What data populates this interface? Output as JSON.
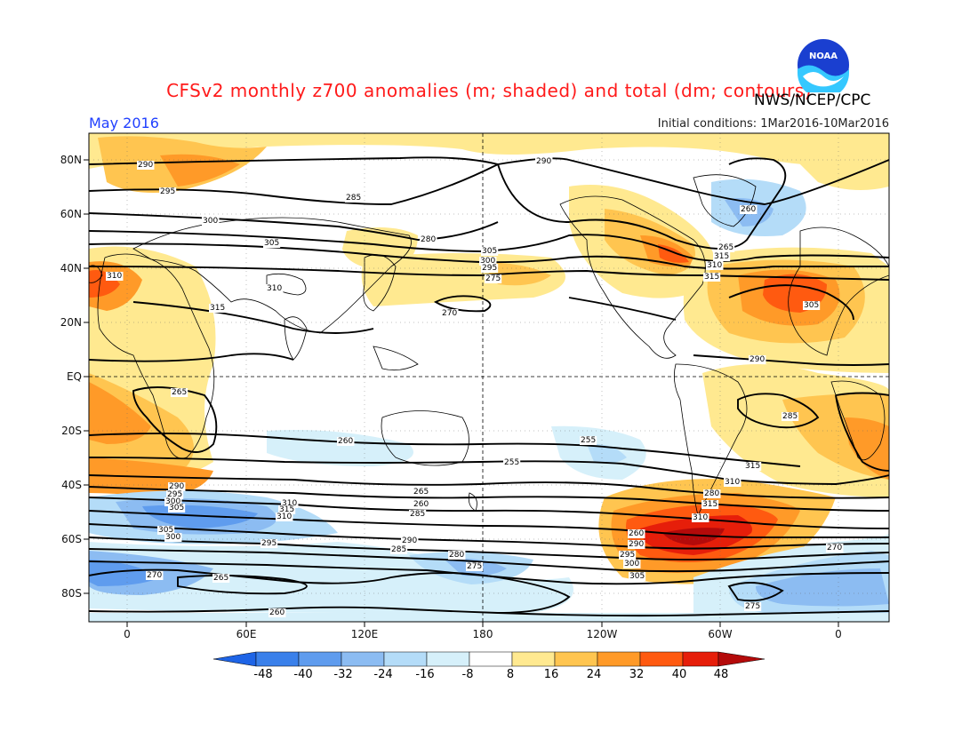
{
  "header": {
    "title": "CFSv2 monthly z700 anomalies (m; shaded) and total (dm; contours)",
    "agency": "NWS/NCEP/CPC",
    "month": "May 2016",
    "initial_conditions": "Initial conditions: 1Mar2016-10Mar2016",
    "logo_text": "NOAA"
  },
  "map": {
    "lat_labels": [
      "80N",
      "60N",
      "40N",
      "20N",
      "EQ",
      "20S",
      "40S",
      "60S",
      "80S"
    ],
    "lon_labels": [
      "0",
      "60E",
      "120E",
      "180",
      "120W",
      "60W",
      "0"
    ],
    "contour_labels": [
      "290",
      "295",
      "300",
      "305",
      "310",
      "315",
      "310",
      "305",
      "300",
      "295",
      "290",
      "285",
      "280",
      "275",
      "270",
      "265",
      "260",
      "255",
      "265",
      "260",
      "285",
      "290",
      "295",
      "300",
      "305",
      "310",
      "315",
      "310",
      "305",
      "300",
      "295",
      "290",
      "285",
      "280",
      "275",
      "270",
      "265",
      "260",
      "255",
      "260",
      "290",
      "295",
      "300",
      "305",
      "310",
      "315",
      "280",
      "310",
      "315",
      "285",
      "290",
      "305",
      "315",
      "310",
      "315",
      "265",
      "260",
      "270",
      "275"
    ]
  },
  "colorbar": {
    "tick_labels": [
      "-48",
      "-40",
      "-32",
      "-24",
      "-16",
      "-8",
      "8",
      "16",
      "24",
      "32",
      "40",
      "48"
    ],
    "colors": [
      "#1e64e6",
      "#3a80ea",
      "#5f9cee",
      "#8cbcf2",
      "#b4dcf8",
      "#d6f0fa",
      "#ffffff",
      "#ffe990",
      "#ffc550",
      "#ff9a28",
      "#ff5a10",
      "#e61e0a",
      "#b40a0a"
    ]
  }
}
